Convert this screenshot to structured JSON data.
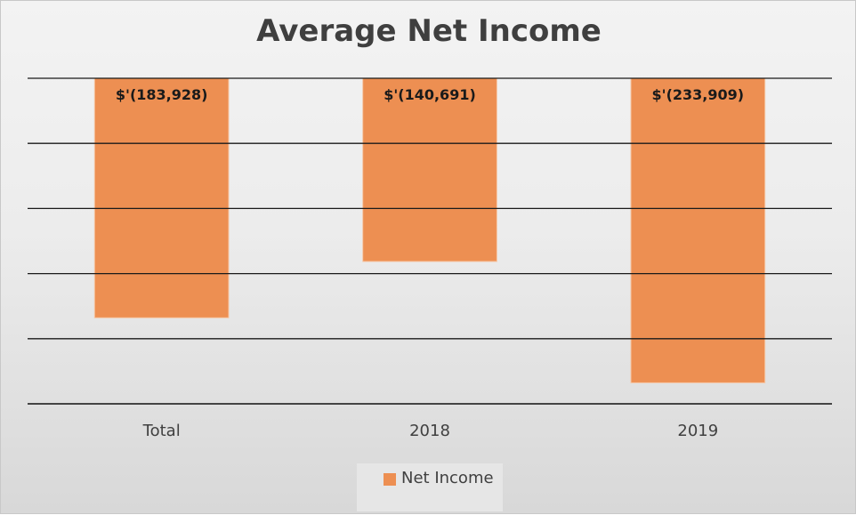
{
  "chart_data": {
    "type": "bar",
    "title": "Average Net Income",
    "categories": [
      "Total",
      "2018",
      "2019"
    ],
    "series": [
      {
        "name": "Net Income",
        "values": [
          -183928,
          -140691,
          -233909
        ],
        "color": "#ed8f52"
      }
    ],
    "data_labels": [
      "$'(183,928)",
      "$'(140,691)",
      "$'(233,909)"
    ],
    "ylim": [
      -250000,
      0
    ],
    "y_gridline_step": 50000,
    "y_tick_labels_shown": false,
    "grid": true,
    "legend_position": "bottom"
  }
}
